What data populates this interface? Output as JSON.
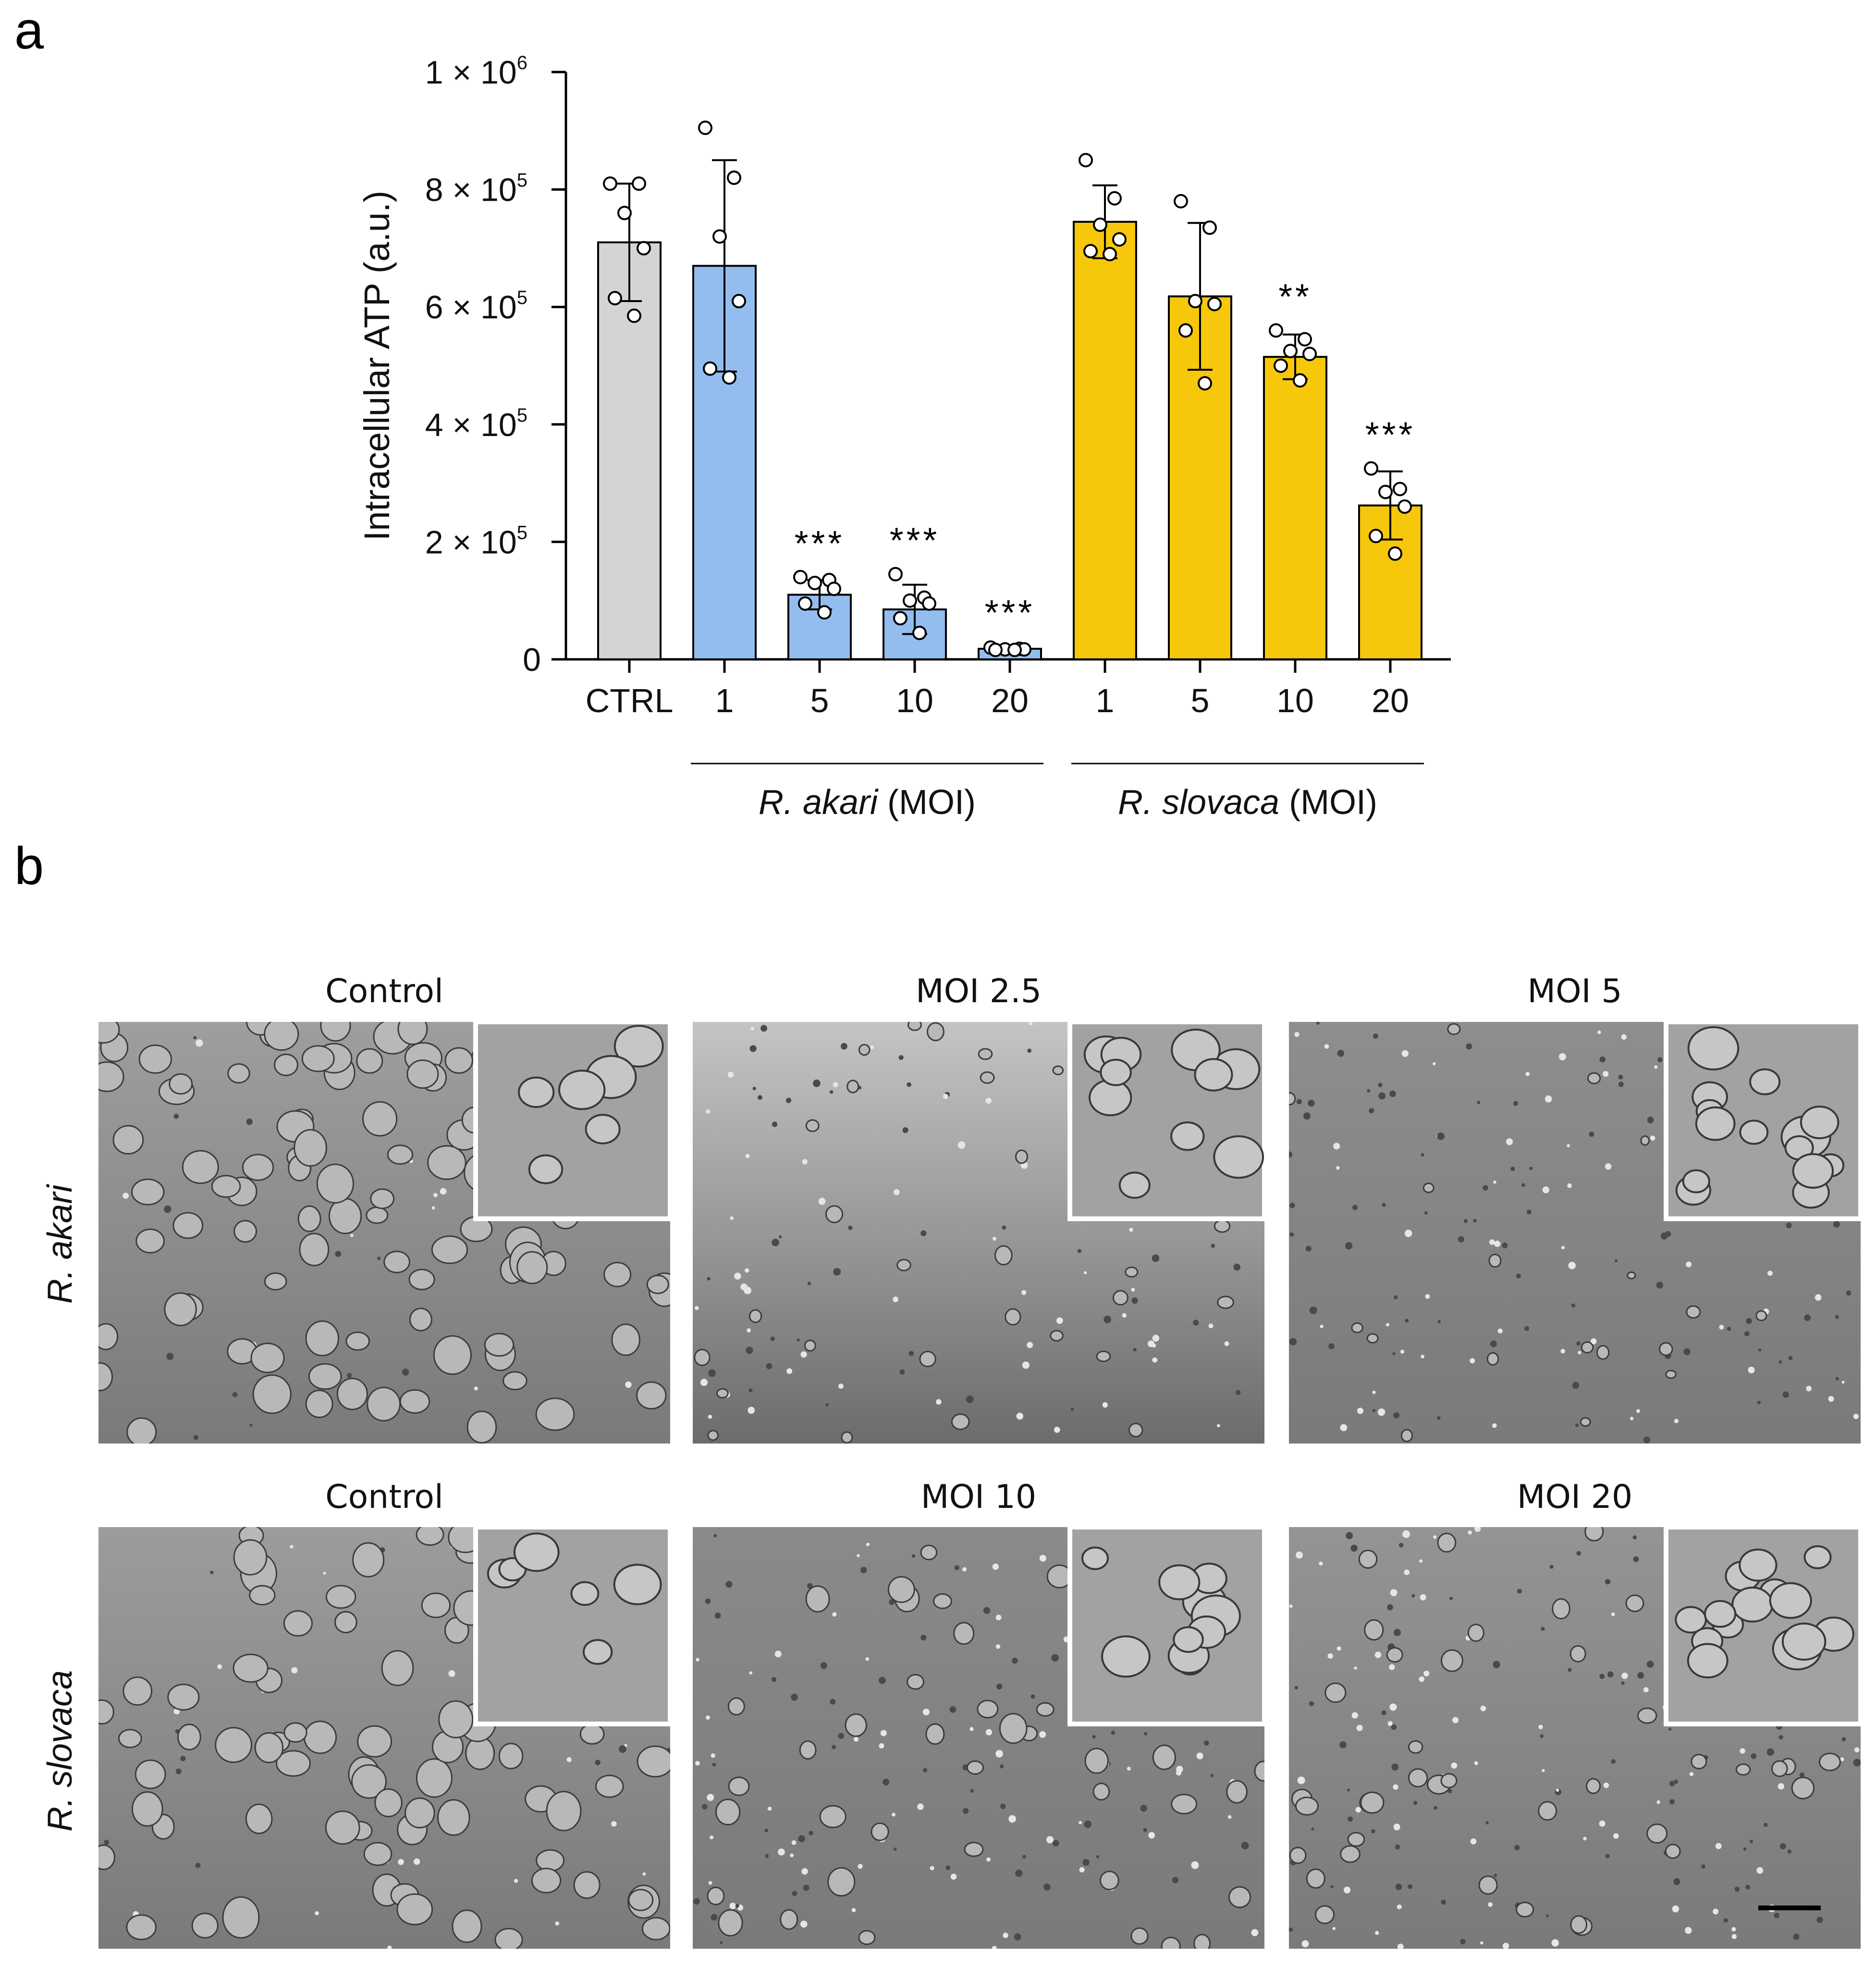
{
  "panels": {
    "a": "a",
    "b": "b"
  },
  "chart_data": {
    "type": "bar",
    "ylabel": "Intracellular ATP (a.u.)",
    "ylim": [
      0,
      1000000
    ],
    "yticks": [
      {
        "value": 0,
        "label": "0",
        "exp": ""
      },
      {
        "value": 200000,
        "label": "2 × 10",
        "exp": "5"
      },
      {
        "value": 400000,
        "label": "4 × 10",
        "exp": "5"
      },
      {
        "value": 600000,
        "label": "6 × 10",
        "exp": "5"
      },
      {
        "value": 800000,
        "label": "8 × 10",
        "exp": "5"
      },
      {
        "value": 1000000,
        "label": "1 × 10",
        "exp": "6"
      }
    ],
    "categories": [
      "CTRL",
      "1",
      "5",
      "10",
      "20",
      "1",
      "5",
      "10",
      "20"
    ],
    "groups": [
      {
        "species": "R. akari",
        "suffix": " (MOI)",
        "from": 1,
        "to": 4
      },
      {
        "species": "R. slovaca",
        "suffix": " (MOI)",
        "from": 5,
        "to": 8
      }
    ],
    "colors": [
      "#d4d4d4",
      "#93bdef",
      "#93bdef",
      "#93bdef",
      "#93bdef",
      "#f6c70a",
      "#f6c70a",
      "#f6c70a",
      "#f6c70a"
    ],
    "values": [
      710000,
      670000,
      110000,
      85000,
      18000,
      745000,
      618000,
      515000,
      262000
    ],
    "errors": [
      100000,
      180000,
      25000,
      42000,
      4000,
      62000,
      125000,
      38000,
      58000
    ],
    "points": [
      [
        810000,
        810000,
        760000,
        700000,
        615000,
        585000
      ],
      [
        905000,
        820000,
        720000,
        610000,
        495000,
        480000
      ],
      [
        140000,
        135000,
        130000,
        120000,
        95000,
        80000
      ],
      [
        145000,
        105000,
        100000,
        95000,
        70000,
        45000
      ],
      [
        20000,
        18000,
        17000,
        17000,
        16000,
        16000
      ],
      [
        850000,
        785000,
        740000,
        715000,
        695000,
        690000
      ],
      [
        780000,
        735000,
        610000,
        605000,
        560000,
        470000
      ],
      [
        560000,
        545000,
        525000,
        520000,
        500000,
        475000
      ],
      [
        325000,
        290000,
        285000,
        260000,
        210000,
        180000
      ]
    ],
    "significance": [
      "",
      "",
      "***",
      "***",
      "***",
      "",
      "",
      "**",
      "***"
    ]
  },
  "micrographs": {
    "row_labels": [
      "R. akari",
      "R. slovaca"
    ],
    "titles": [
      "Control",
      "MOI 2.5",
      "MOI 5",
      "Control",
      "MOI 10",
      "MOI 20"
    ]
  }
}
